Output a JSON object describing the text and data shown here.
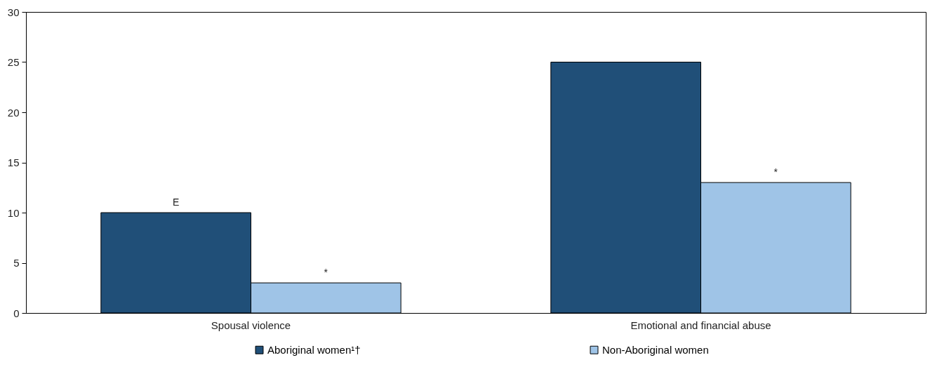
{
  "chart_data": {
    "type": "bar",
    "categories": [
      "Spousal violence",
      "Emotional and financial abuse"
    ],
    "series": [
      {
        "name": "Aboriginal women¹†",
        "color": "#204f78",
        "values": [
          10,
          25
        ],
        "value_labels": [
          "E",
          null
        ]
      },
      {
        "name": "Non-Aboriginal women",
        "color": "#9fc4e7",
        "values": [
          3,
          13
        ],
        "value_labels": [
          "*",
          "*"
        ]
      }
    ],
    "ylim": [
      0,
      30
    ],
    "yticks": [
      0,
      5,
      10,
      15,
      20,
      25,
      30
    ],
    "grid": false,
    "legend": "bottom"
  }
}
